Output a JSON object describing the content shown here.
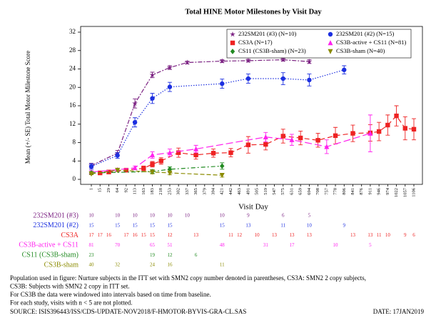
{
  "chart_data": {
    "type": "line",
    "title": "Total HINE Motor Milestones by Visit Day",
    "y_label": "Mean (+/- SE) Total Motor Milestone Score",
    "x_label": "Visit Day",
    "categories": [
      "1",
      "15",
      "29",
      "64",
      "92",
      "113",
      "163",
      "183",
      "218",
      "253",
      "302",
      "337",
      "365",
      "379",
      "394",
      "421",
      "442",
      "463",
      "491",
      "505",
      "519",
      "547",
      "575",
      "631",
      "659",
      "694",
      "708",
      "757",
      "778",
      "806",
      "841",
      "876",
      "911",
      "946",
      "974",
      "1022",
      "1057",
      "1106"
    ],
    "ylim": [
      0,
      32
    ],
    "yticks": [
      0,
      4,
      8,
      12,
      16,
      20,
      24,
      28,
      32
    ],
    "legend": "top-right",
    "series": [
      {
        "name": "232SM201 (#3) (N=10)",
        "color": "#7b2182",
        "marker": "star",
        "x": [
          "1",
          "64",
          "113",
          "183",
          "253",
          "337",
          "421",
          "491",
          "575",
          "694"
        ],
        "values": [
          3.0,
          5.7,
          16.5,
          22.7,
          24.3,
          25.4,
          25.7,
          25.8,
          26.0,
          25.6
        ],
        "errors": [
          0.5,
          0.6,
          1.0,
          0.6,
          0.4,
          0.3,
          0.3,
          0.3,
          0.3,
          0.4
        ]
      },
      {
        "name": "232SM201 (#2) (N=15)",
        "color": "#1c2fe0",
        "marker": "circle",
        "x": [
          "1",
          "64",
          "113",
          "183",
          "253",
          "421",
          "491",
          "575",
          "694",
          "806"
        ],
        "values": [
          2.8,
          5.2,
          12.4,
          17.6,
          20.1,
          20.8,
          21.9,
          21.9,
          21.6,
          23.8
        ],
        "errors": [
          0.6,
          0.6,
          1.0,
          1.1,
          1.0,
          1.0,
          1.0,
          1.3,
          1.3,
          0.9
        ]
      },
      {
        "name": "CS3A (N=17)",
        "color": "#ee2222",
        "marker": "square",
        "x": [
          "15",
          "29",
          "92",
          "163",
          "183",
          "218",
          "302",
          "365",
          "394",
          "442",
          "491",
          "519",
          "575",
          "659",
          "708",
          "778",
          "841",
          "911",
          "946",
          "974",
          "1022",
          "1057",
          "1106"
        ],
        "values": [
          1.4,
          1.6,
          2.0,
          2.4,
          3.3,
          4.0,
          5.8,
          5.3,
          5.7,
          5.8,
          7.5,
          7.6,
          9.4,
          9.0,
          8.5,
          9.5,
          10.0,
          10.1,
          10.4,
          11.8,
          13.8,
          11.1,
          10.9
        ],
        "errors": [
          0.3,
          0.3,
          0.4,
          0.5,
          0.6,
          0.7,
          1.0,
          0.9,
          0.9,
          0.9,
          1.8,
          1.2,
          1.5,
          1.5,
          1.5,
          1.8,
          1.8,
          1.8,
          2.0,
          2.2,
          2.2,
          2.5,
          2.3
        ]
      },
      {
        "name": "CS3B-active + CS11 (N=81)",
        "color": "#ff22ee",
        "marker": "triangle",
        "x": [
          "1",
          "64",
          "113",
          "183",
          "253",
          "365",
          "519",
          "631",
          "757",
          "911"
        ],
        "values": [
          1.6,
          2.1,
          2.5,
          5.3,
          5.8,
          6.6,
          9.2,
          8.6,
          7.1,
          10.0
        ],
        "errors": [
          0.3,
          0.3,
          0.4,
          0.7,
          0.8,
          0.8,
          1.0,
          1.2,
          1.5,
          4.0
        ]
      },
      {
        "name": "CS11 (CS3B-sham) (N=23)",
        "color": "#228b22",
        "marker": "diamond",
        "x": [
          "1",
          "183",
          "253",
          "421"
        ],
        "values": [
          1.4,
          1.7,
          2.2,
          2.9
        ],
        "errors": [
          0.3,
          0.4,
          0.5,
          0.7
        ]
      },
      {
        "name": "CS3B-sham (N=40)",
        "color": "#8b8b00",
        "marker": "triangle-down",
        "x": [
          "1",
          "64",
          "183",
          "253",
          "421"
        ],
        "values": [
          1.2,
          2.0,
          1.6,
          1.4,
          0.9
        ],
        "errors": [
          0.2,
          0.3,
          0.4,
          0.4,
          0.4
        ]
      }
    ],
    "n_rows": [
      {
        "name": "232SM201 (#3)",
        "color": "#7b2182",
        "x": [
          "1",
          "64",
          "113",
          "183",
          "253",
          "337",
          "421",
          "491",
          "575",
          "694"
        ],
        "counts": [
          10,
          10,
          10,
          10,
          10,
          10,
          10,
          9,
          6,
          5
        ]
      },
      {
        "name": "232SM201 (#2)",
        "color": "#1c2fe0",
        "x": [
          "1",
          "64",
          "113",
          "183",
          "253",
          "421",
          "491",
          "575",
          "694",
          "806"
        ],
        "counts": [
          15,
          15,
          15,
          15,
          15,
          15,
          13,
          11,
          10,
          9
        ]
      },
      {
        "name": "CS3A",
        "color": "#ee2222",
        "x": [
          "1",
          "15",
          "29",
          "92",
          "113",
          "163",
          "183",
          "253",
          "365",
          "442",
          "463",
          "505",
          "547",
          "631",
          "694",
          "841",
          "911",
          "946",
          "974",
          "1057",
          "1106"
        ],
        "counts": [
          17,
          17,
          16,
          17,
          16,
          15,
          15,
          12,
          13,
          11,
          12,
          10,
          13,
          13,
          13,
          13,
          13,
          11,
          10,
          9,
          6
        ]
      },
      {
        "name": "CS3B-active + CS11",
        "color": "#ff22ee",
        "x": [
          "1",
          "64",
          "183",
          "253",
          "421",
          "519",
          "631",
          "778",
          "911"
        ],
        "counts": [
          81,
          70,
          65,
          51,
          48,
          31,
          17,
          10,
          5
        ]
      },
      {
        "name": "CS11 (CS3B-sham)",
        "color": "#228b22",
        "x": [
          "1",
          "183",
          "253",
          "365"
        ],
        "counts": [
          23,
          19,
          12,
          6
        ]
      },
      {
        "name": "CS3B-sham",
        "color": "#8b8b00",
        "x": [
          "1",
          "64",
          "183",
          "253",
          "421"
        ],
        "counts": [
          40,
          32,
          24,
          16,
          11
        ]
      }
    ],
    "footnotes": [
      "Population used in figure: Nurture subjects in the ITT set with SMN2 copy number denoted in parentheses, CS3A: SMN2 2 copy subjects,",
      "CS3B: Subjects with SMN2 2 copy in ITT set.",
      "For CS3B the data were windowed into intervals based on time from baseline.",
      "For each study, visits with n < 5 are not plotted."
    ],
    "source": "SOURCE: ISIS396443/ISS/CDS-UPDATE-NOV2018/F-HMOTOR-BYVIS-GRA-CL.SAS",
    "date": "DATE: 17JAN2019"
  }
}
